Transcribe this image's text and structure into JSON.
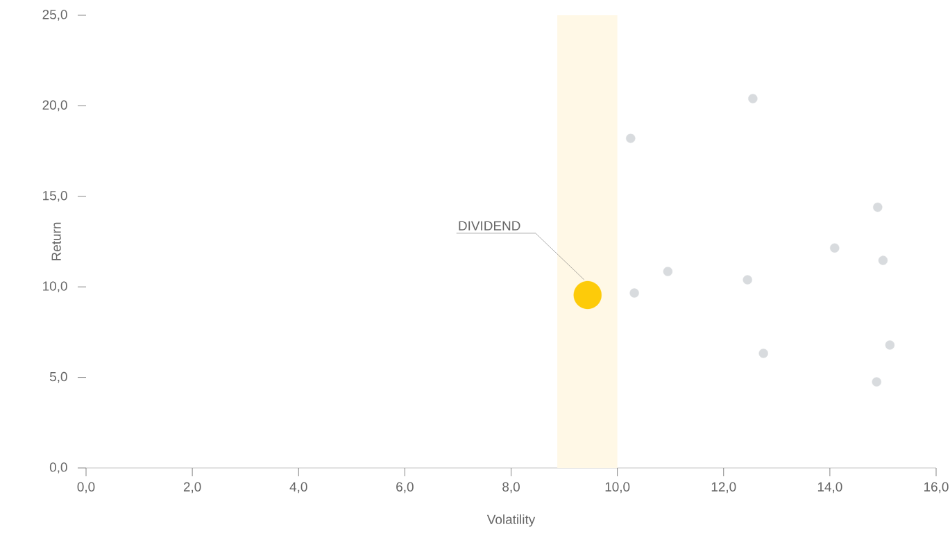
{
  "chart_data": {
    "type": "scatter",
    "xlabel": "Volatility",
    "ylabel": "Return",
    "xlim": [
      0,
      16
    ],
    "ylim": [
      0,
      25
    ],
    "xticks": [
      {
        "value": 0,
        "label": "0,0"
      },
      {
        "value": 2,
        "label": "2,0"
      },
      {
        "value": 4,
        "label": "4,0"
      },
      {
        "value": 6,
        "label": "6,0"
      },
      {
        "value": 8,
        "label": "8,0"
      },
      {
        "value": 10,
        "label": "10,0"
      },
      {
        "value": 12,
        "label": "12,0"
      },
      {
        "value": 14,
        "label": "14,0"
      },
      {
        "value": 16,
        "label": "16,0"
      }
    ],
    "yticks": [
      {
        "value": 0,
        "label": "0,0"
      },
      {
        "value": 5,
        "label": "5,0"
      },
      {
        "value": 10,
        "label": "10,0"
      },
      {
        "value": 15,
        "label": "15,0"
      },
      {
        "value": 20,
        "label": "20,0"
      },
      {
        "value": 25,
        "label": "25,0"
      }
    ],
    "grid": false,
    "marker": "circle",
    "bands": [
      {
        "axis": "x",
        "from": 8.87,
        "to": 10.0,
        "color": "#fff8e6"
      }
    ],
    "series": [
      {
        "color": "#d8dbde",
        "x": [
          10.25,
          12.55,
          14.9,
          14.09,
          15.0,
          10.95,
          12.45,
          10.32,
          15.13,
          12.75,
          14.88
        ],
        "values": [
          18.2,
          20.4,
          14.4,
          12.15,
          11.46,
          10.85,
          10.39,
          9.66,
          6.79,
          6.33,
          4.75
        ]
      },
      {
        "name": "DIVIDEND",
        "color": "#fdcb0a",
        "x": [
          9.44
        ],
        "values": [
          9.55
        ]
      }
    ]
  }
}
